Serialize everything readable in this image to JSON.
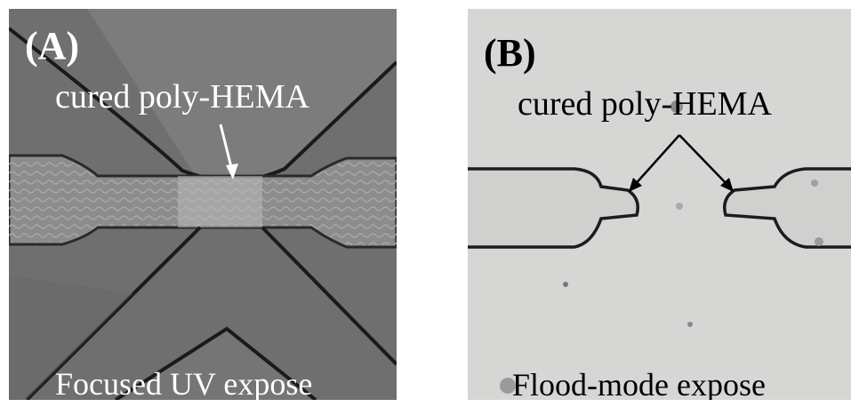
{
  "panels": [
    {
      "label": "(A)",
      "annotation": "cured poly-HEMA",
      "caption": "Focused UV expose"
    },
    {
      "label": "(B)",
      "annotation": "cured poly-HEMA",
      "caption": "Flood-mode expose"
    }
  ]
}
